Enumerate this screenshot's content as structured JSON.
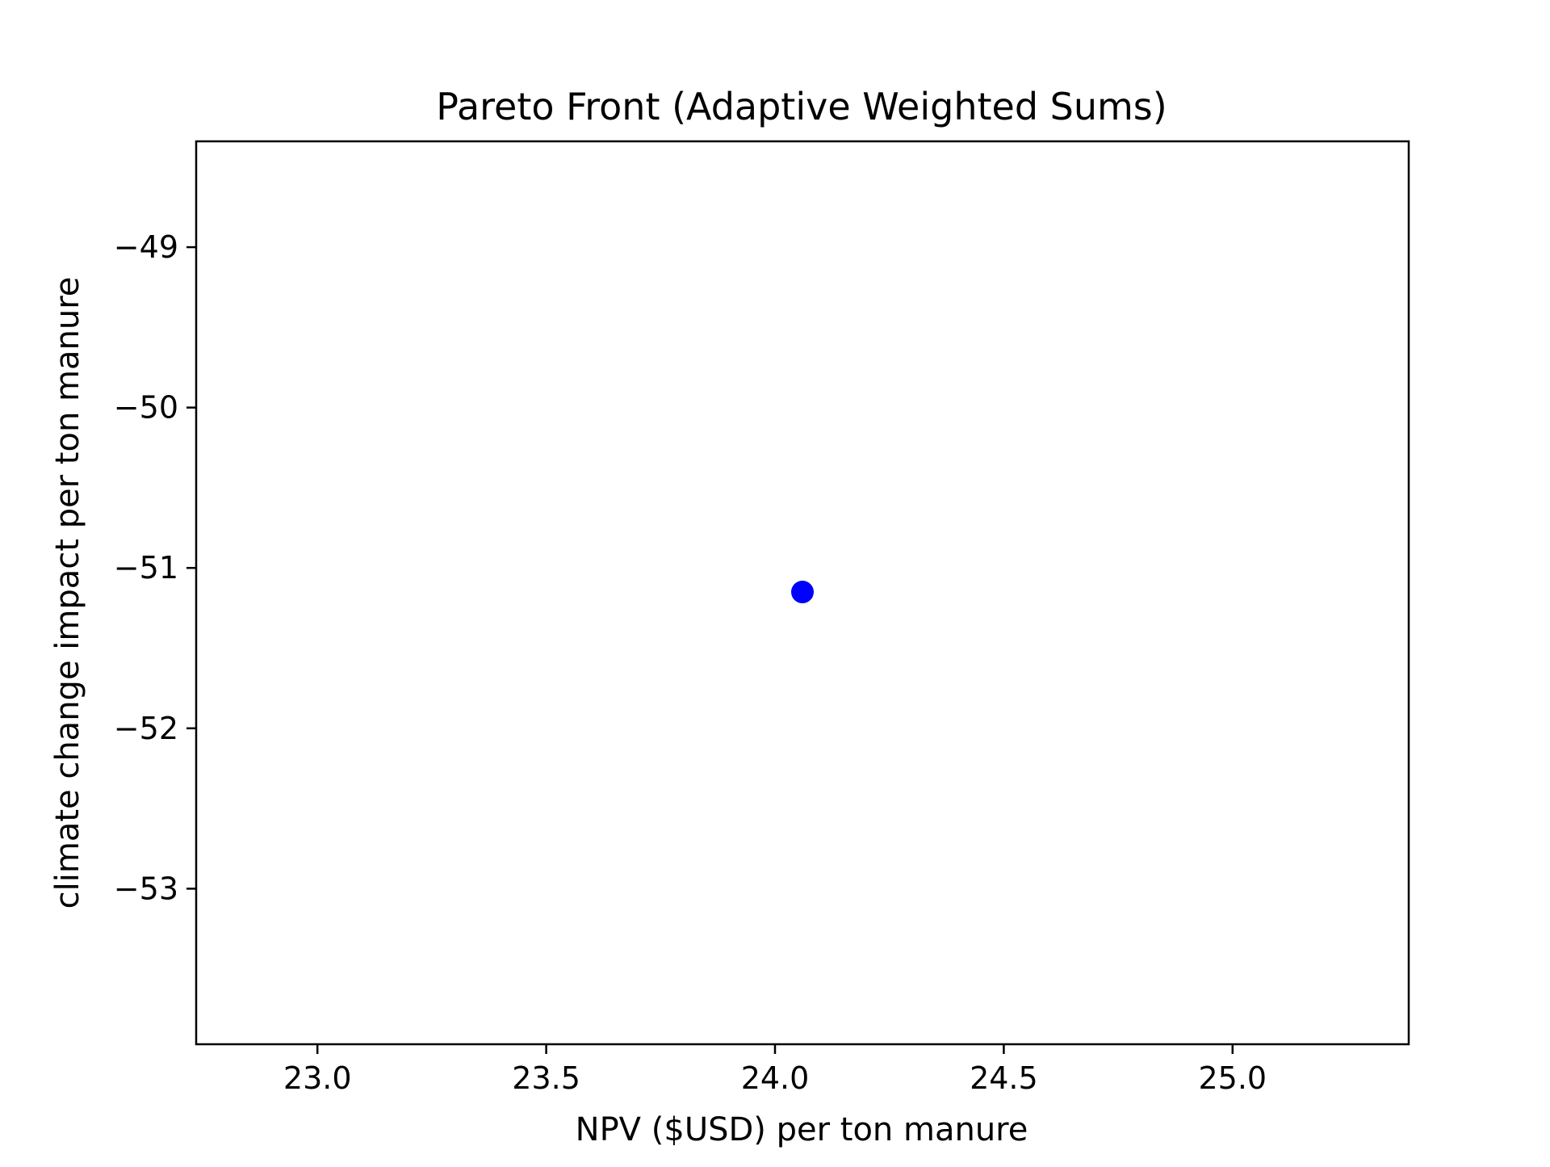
{
  "chart_data": {
    "type": "scatter",
    "title": "Pareto Front (Adaptive Weighted Sums)",
    "xlabel": "NPV ($USD) per ton manure",
    "ylabel": "climate change impact per ton manure",
    "xlim": [
      22.735,
      25.385
    ],
    "ylim": [
      -53.97,
      -48.34
    ],
    "xticks": [
      23.0,
      23.5,
      24.0,
      24.5,
      25.0
    ],
    "xtick_labels": [
      "23.0",
      "23.5",
      "24.0",
      "24.5",
      "25.0"
    ],
    "yticks": [
      -49,
      -50,
      -51,
      -52,
      -53
    ],
    "ytick_labels": [
      "−49",
      "−50",
      "−51",
      "−52",
      "−53"
    ],
    "grid": false,
    "series": [
      {
        "x": [
          24.06
        ],
        "y": [
          -51.15
        ],
        "color": "#0000ff",
        "marker": "circle"
      }
    ]
  }
}
